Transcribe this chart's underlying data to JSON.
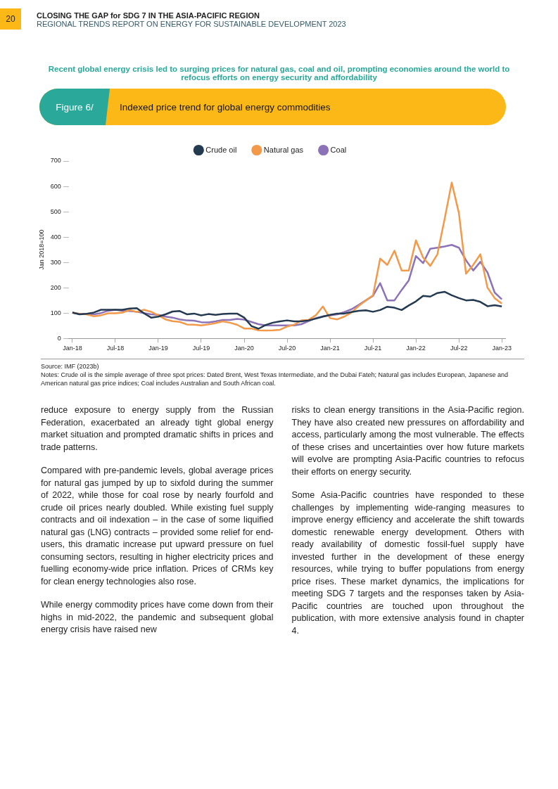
{
  "chart_data": {
    "type": "line",
    "title": "Indexed price trend for global energy commodities",
    "subtitle": "Recent global energy crisis led to surging prices for natural gas, coal and oil, prompting economies around the world to refocus efforts on energy security and affordability",
    "ylabel": "Jan 2018=100",
    "categories": [
      "Jan-18",
      null,
      null,
      null,
      null,
      null,
      "Jul-18",
      null,
      null,
      null,
      null,
      null,
      "Jan-19",
      null,
      null,
      null,
      null,
      null,
      "Jul-19",
      null,
      null,
      null,
      null,
      null,
      "Jan-20",
      null,
      null,
      null,
      null,
      null,
      "Jul-20",
      null,
      null,
      null,
      null,
      null,
      "Jan-21",
      null,
      null,
      null,
      null,
      null,
      "Jul-21",
      null,
      null,
      null,
      null,
      null,
      "Jan-22",
      null,
      null,
      null,
      null,
      null,
      "Jul-22",
      null,
      null,
      null,
      null,
      null,
      "Jan-23"
    ],
    "series": [
      {
        "name": "Crude oil",
        "color": "#243a50",
        "values": [
          102,
          95,
          97,
          102,
          113,
          113,
          113,
          113,
          118,
          119,
          99,
          82,
          86,
          95,
          106,
          108,
          95,
          98,
          91,
          96,
          93,
          96,
          98,
          98,
          82,
          49,
          38,
          53,
          62,
          67,
          71,
          67,
          67,
          71,
          78,
          86,
          93,
          98,
          98,
          104,
          109,
          111,
          105,
          112,
          125,
          121,
          112,
          130,
          146,
          168,
          165,
          179,
          184,
          170,
          159,
          150,
          152,
          144,
          127,
          131,
          126
        ]
      },
      {
        "name": "Natural gas",
        "color": "#f2994a",
        "values": [
          102,
          97,
          95,
          87,
          91,
          99,
          99,
          102,
          112,
          104,
          113,
          105,
          91,
          75,
          68,
          65,
          55,
          54,
          51,
          55,
          60,
          67,
          62,
          54,
          39,
          39,
          32,
          31,
          32,
          34,
          47,
          54,
          71,
          73,
          91,
          126,
          80,
          75,
          86,
          102,
          128,
          150,
          170,
          315,
          290,
          346,
          268,
          268,
          387,
          319,
          286,
          332,
          470,
          615,
          495,
          255,
          290,
          332,
          200,
          159,
          137
        ]
      },
      {
        "name": "Coal",
        "color": "#8c73b8",
        "values": [
          102,
          96,
          97,
          95,
          100,
          109,
          113,
          109,
          108,
          105,
          100,
          95,
          93,
          86,
          82,
          75,
          71,
          70,
          64,
          63,
          67,
          73,
          73,
          77,
          74,
          65,
          56,
          51,
          51,
          51,
          51,
          51,
          56,
          68,
          80,
          87,
          91,
          95,
          104,
          115,
          132,
          150,
          168,
          218,
          150,
          150,
          191,
          229,
          325,
          297,
          354,
          358,
          363,
          369,
          358,
          308,
          268,
          302,
          260,
          181,
          154
        ]
      }
    ],
    "ylim": [
      0,
      700
    ],
    "yticks": [
      0,
      100,
      200,
      300,
      400,
      500,
      600,
      700
    ],
    "legend": "top",
    "marker": "none",
    "grid": false,
    "annotations": [
      "20",
      "CLOSING THE GAP for SDG 7 IN THE ASIA-PACIFIC REGION",
      "REGIONAL TRENDS REPORT ON ENERGY FOR SUSTAINABLE DEVELOPMENT 2023",
      "Figure 6/",
      "Source:  IMF (2023b)",
      "Notes: Crude oil is the simple average of three spot prices: Dated Brent, West Texas Intermediate, and the Dubai Fateh; Natural gas includes European, Japanese and American natural gas price indices; Coal includes Australian and South African coal.",
      "reduce exposure to energy supply from the Russian Federation, exacerbated an already tight global energy market situation and prompted dramatic shifts in prices and trade patterns.",
      "Compared with pre-pandemic levels, global average prices for natural gas jumped by up to sixfold during the summer of 2022, while those for coal rose by nearly fourfold and crude oil prices nearly doubled. While existing fuel supply contracts and oil indexation – in the case of some liquified natural gas (LNG) contracts – provided some relief for end-users, this dramatic increase put upward pressure on fuel consuming sectors, resulting in higher electricity prices and fuelling economy-wide price inflation. Prices of CRMs key for clean energy technologies also rose.",
      "While energy commodity prices have come down from their highs in mid-2022, the pandemic and subsequent global energy crisis have raised new",
      "risks to clean energy transitions in the Asia-Pacific region. They have also created new pressures on affordability and access, particularly among the most vulnerable. The effects of these crises and uncertainties over how future markets will evolve are prompting Asia-Pacific countries to refocus their efforts on energy security.",
      "Some Asia-Pacific countries have responded to these challenges by implementing wide-ranging measures to improve energy efficiency and accelerate the shift towards domestic renewable energy development. Others with ready availability of domestic fossil-fuel supply have invested further in the development of these energy resources, while trying to buffer populations from energy price rises. These market dynamics, the implications for meeting SDG 7 targets and the responses taken by Asia-Pacific countries are touched upon throughout the publication, with more extensive analysis found in chapter 4."
    ]
  }
}
